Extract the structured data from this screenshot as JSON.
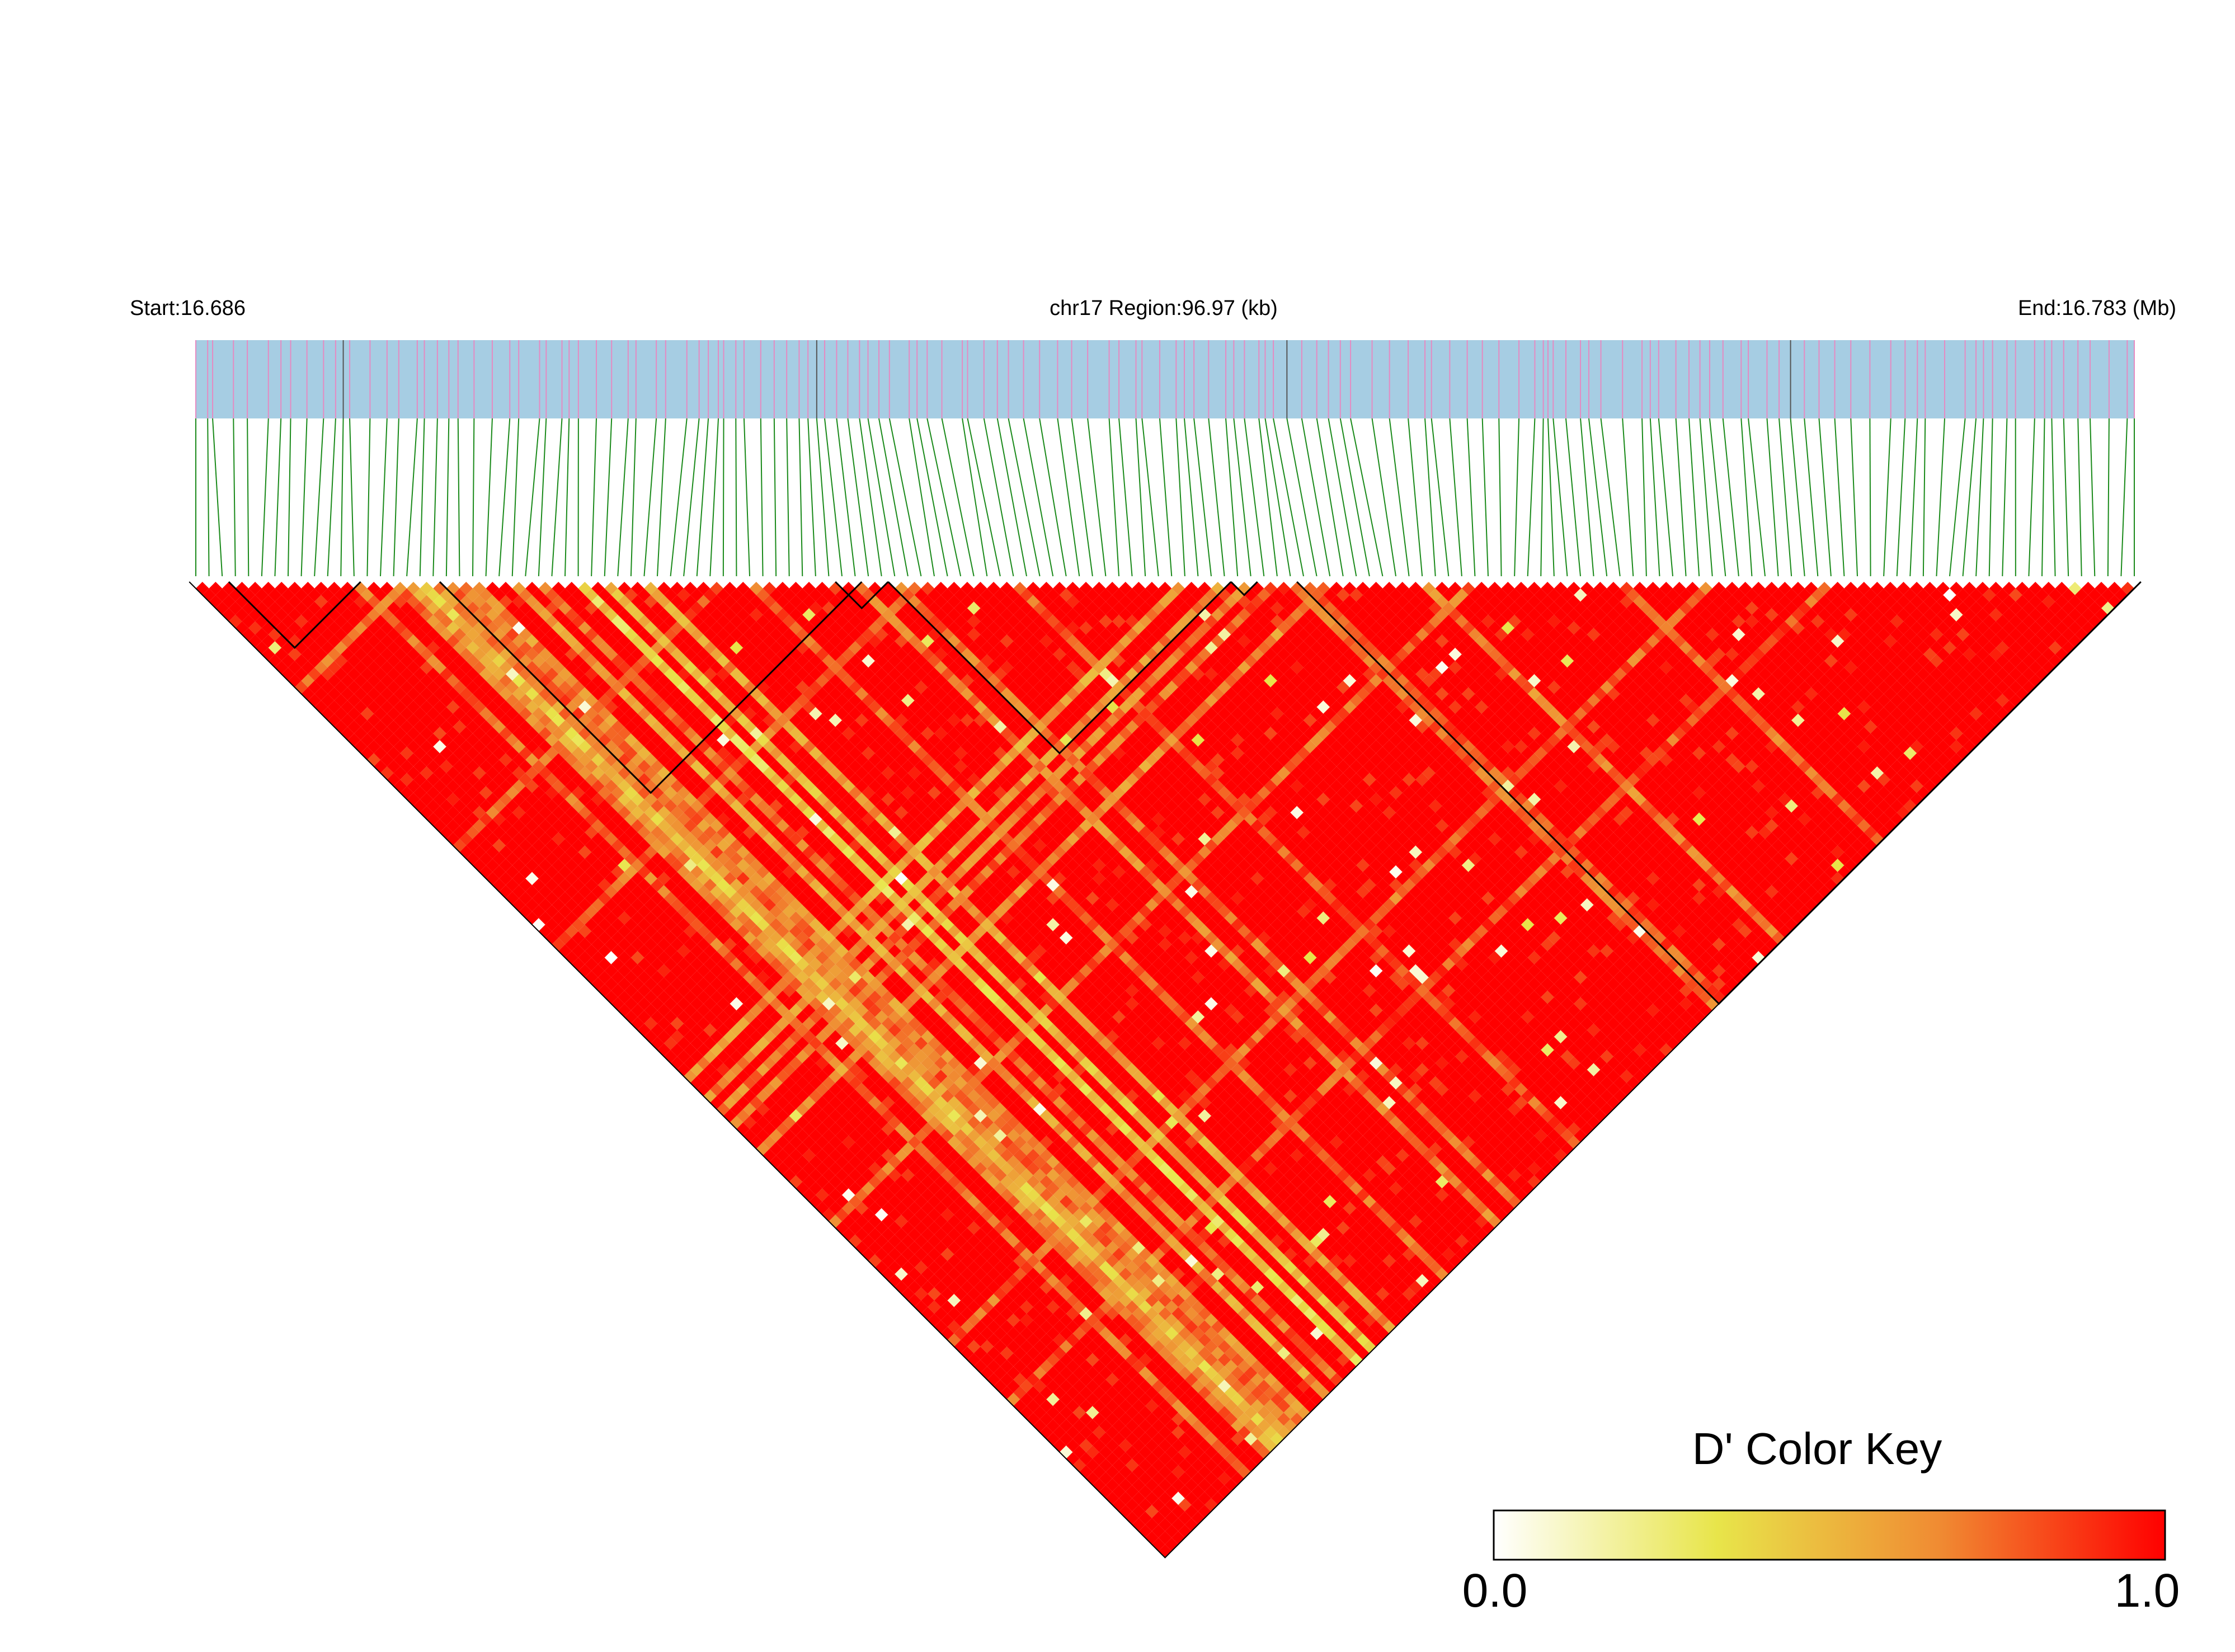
{
  "header": {
    "start_label": "Start:16.686",
    "region_label": "chr17 Region:96.97 (kb)",
    "end_label": "End:16.783 (Mb)"
  },
  "chart_data": {
    "type": "heatmap",
    "subtype": "LD triangle heatmap",
    "chromosome": "chr17",
    "region_start_mb": 16.686,
    "region_end_mb": 16.783,
    "region_length_kb": 96.97,
    "metric": "D'",
    "snp_count": 148,
    "value_range": [
      0.0,
      1.0
    ],
    "baseline_dprime": 1.0,
    "haplotype_blocks": [
      {
        "first_snp": 3,
        "last_snp": 12
      },
      {
        "first_snp": 19,
        "last_snp": 50
      },
      {
        "first_snp": 49,
        "last_snp": 52
      },
      {
        "first_snp": 53,
        "last_snp": 78
      },
      {
        "first_snp": 79,
        "last_snp": 80
      },
      {
        "first_snp": 84,
        "last_snp": 147
      }
    ],
    "low_ld_snp_lines": [
      {
        "snp": 12,
        "side": "down-right",
        "dprime": 0.6
      },
      {
        "snp": 15,
        "side": "down-right",
        "dprime": 0.55
      },
      {
        "snp": 16,
        "side": "down-right",
        "dprime": 0.45
      },
      {
        "snp": 17,
        "side": "down-right",
        "dprime": 0.3
      },
      {
        "snp": 18,
        "side": "down-right",
        "dprime": 0.5
      },
      {
        "snp": 19,
        "side": "down-right",
        "dprime": 0.6
      },
      {
        "snp": 20,
        "side": "down-right",
        "dprime": 0.55
      },
      {
        "snp": 21,
        "side": "down-right",
        "dprime": 0.5
      },
      {
        "snp": 24,
        "side": "down-right",
        "dprime": 0.45
      },
      {
        "snp": 26,
        "side": "down-right",
        "dprime": 0.6
      },
      {
        "snp": 29,
        "side": "down-right",
        "dprime": 0.25
      },
      {
        "snp": 31,
        "side": "down-right",
        "dprime": 0.35
      },
      {
        "snp": 34,
        "side": "down-right",
        "dprime": 0.45
      },
      {
        "snp": 42,
        "side": "down-right",
        "dprime": 0.6
      },
      {
        "snp": 50,
        "side": "down-right",
        "dprime": 0.55
      },
      {
        "snp": 53,
        "side": "down-right",
        "dprime": 0.6
      },
      {
        "snp": 62,
        "side": "down-right",
        "dprime": 0.65
      },
      {
        "snp": 83,
        "side": "down-right",
        "dprime": 0.6
      },
      {
        "snp": 84,
        "side": "down-right",
        "dprime": 0.65
      },
      {
        "snp": 93,
        "side": "down-right",
        "dprime": 0.55
      },
      {
        "snp": 108,
        "side": "down-right",
        "dprime": 0.6
      },
      {
        "snp": 16,
        "side": "down-left",
        "dprime": 0.55
      },
      {
        "snp": 40,
        "side": "down-left",
        "dprime": 0.65
      },
      {
        "snp": 55,
        "side": "down-left",
        "dprime": 0.6
      },
      {
        "snp": 75,
        "side": "down-left",
        "dprime": 0.45
      },
      {
        "snp": 78,
        "side": "down-left",
        "dprime": 0.5
      },
      {
        "snp": 80,
        "side": "down-left",
        "dprime": 0.55
      },
      {
        "snp": 82,
        "side": "down-left",
        "dprime": 0.6
      },
      {
        "snp": 86,
        "side": "down-left",
        "dprime": 0.5
      },
      {
        "snp": 97,
        "side": "down-left",
        "dprime": 0.6
      },
      {
        "snp": 115,
        "side": "down-left",
        "dprime": 0.6
      },
      {
        "snp": 124,
        "side": "down-left",
        "dprime": 0.65
      }
    ],
    "legend": {
      "title": "D' Color Key",
      "min_label": "0.0",
      "max_label": "1.0",
      "color_stops": [
        "#ffffff",
        "#e8e54a",
        "#f08a32",
        "#ff0000"
      ],
      "placement": "bottom-right"
    }
  },
  "colors": {
    "track_fill": "#a6cde3",
    "snp_tick": "#e48bc2",
    "dark_snp_tick": "#555555",
    "connector_line": "#1a8a1a",
    "ld_high": "#ff0000",
    "block_outline": "#000000"
  }
}
